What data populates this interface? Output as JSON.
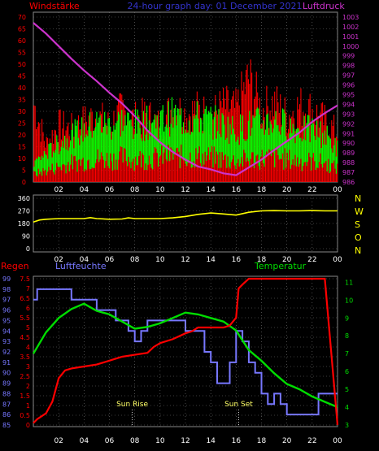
{
  "chart_data": [
    {
      "panel": "wind-pressure",
      "type": "line",
      "title": "24-hour graph day: 01 December 2021",
      "left_label": "Windstärke",
      "right_label": "Luftdruck",
      "x_ticks": [
        "02",
        "04",
        "06",
        "08",
        "10",
        "12",
        "14",
        "16",
        "18",
        "20",
        "22",
        "00"
      ],
      "y_left_ticks": [
        "0",
        "5",
        "10",
        "15",
        "20",
        "25",
        "30",
        "35",
        "40",
        "45",
        "50",
        "55",
        "60",
        "65",
        "70"
      ],
      "y_left_range": [
        0,
        70
      ],
      "y_right_ticks": [
        "986",
        "987",
        "988",
        "989",
        "990",
        "991",
        "992",
        "993",
        "994",
        "995",
        "996",
        "997",
        "998",
        "999",
        "1000",
        "1001",
        "1002",
        "1003"
      ],
      "y_right_range": [
        986,
        1003.5
      ],
      "grid": true,
      "colors": {
        "gust": "#ff0000",
        "wind": "#00ff00",
        "pressure": "#cc33cc",
        "axis_left": "#ff0000",
        "axis_right": "#cc33cc",
        "title": "#3333cc"
      },
      "series": [
        {
          "key": "gust",
          "x": [
            0,
            1,
            2,
            3,
            4,
            5,
            6,
            7,
            8,
            9,
            10,
            11,
            12,
            13,
            14,
            15,
            16,
            17,
            18,
            19,
            20,
            21,
            22,
            23,
            24
          ],
          "values": [
            42,
            20,
            30,
            28,
            32,
            35,
            30,
            38,
            33,
            35,
            30,
            40,
            36,
            38,
            35,
            40,
            38,
            55,
            38,
            42,
            35,
            40,
            38,
            32,
            26
          ]
        },
        {
          "key": "wind",
          "x": [
            0,
            1,
            2,
            3,
            4,
            5,
            6,
            7,
            8,
            9,
            10,
            11,
            12,
            13,
            14,
            15,
            16,
            17,
            18,
            19,
            20,
            21,
            22,
            23,
            24
          ],
          "values": [
            8,
            12,
            16,
            20,
            22,
            25,
            24,
            26,
            24,
            25,
            26,
            28,
            26,
            27,
            26,
            24,
            22,
            24,
            25,
            26,
            24,
            22,
            22,
            20,
            14
          ]
        },
        {
          "key": "pressure",
          "x": [
            0,
            1,
            2,
            3,
            4,
            5,
            6,
            7,
            8,
            9,
            10,
            11,
            12,
            13,
            14,
            15,
            16,
            17,
            18,
            19,
            20,
            21,
            22,
            23,
            24
          ],
          "values": [
            1002.4,
            1001.3,
            1000.0,
            998.7,
            997.5,
            996.4,
            995.2,
            994.1,
            992.8,
            991.3,
            990.1,
            989.1,
            988.3,
            987.6,
            987.3,
            986.9,
            986.7,
            987.5,
            988.3,
            989.3,
            990.2,
            991.1,
            992.2,
            993.1,
            993.9
          ]
        }
      ]
    },
    {
      "panel": "wind-direction",
      "type": "line",
      "y_ticks": [
        "360",
        "270",
        "180",
        "90",
        "0"
      ],
      "y_range": [
        0,
        360
      ],
      "direction_labels": [
        "N",
        "W",
        "S",
        "O",
        "N"
      ],
      "x_ticks": [
        "02",
        "04",
        "06",
        "08",
        "10",
        "12",
        "14",
        "16",
        "18",
        "20",
        "22",
        "00"
      ],
      "grid": true,
      "colors": {
        "direction": "#ffff00",
        "labels": "#ffff00",
        "axis": "#ffff00"
      },
      "series": [
        {
          "key": "direction",
          "x": [
            0,
            0.5,
            1,
            2,
            3,
            4,
            4.5,
            5,
            6,
            7,
            7.5,
            8,
            9,
            10,
            11,
            12,
            13,
            14,
            15,
            16,
            17,
            18,
            19,
            20,
            21,
            22,
            23,
            24
          ],
          "values": [
            190,
            205,
            210,
            215,
            215,
            215,
            222,
            215,
            210,
            212,
            220,
            215,
            215,
            215,
            220,
            230,
            245,
            255,
            248,
            240,
            260,
            270,
            272,
            270,
            270,
            272,
            270,
            270
          ]
        }
      ]
    },
    {
      "panel": "rain-humidity-temperature",
      "type": "line",
      "left_label": "Regen",
      "mid_label": "Luftfeuchte",
      "right_label": "Temperatur",
      "annotations": [
        {
          "text": "Sun Rise",
          "x": 7.8
        },
        {
          "text": "Sun Set",
          "x": 16.2
        }
      ],
      "x_ticks": [
        "02",
        "04",
        "06",
        "08",
        "10",
        "12",
        "14",
        "16",
        "18",
        "20",
        "22",
        "00"
      ],
      "y_rain_ticks": [
        "0",
        "0.5",
        "1",
        "1.5",
        "2",
        "2.5",
        "3",
        "3.5",
        "4",
        "4.5",
        "5",
        "5.5",
        "6",
        "6.5",
        "7",
        "7.5"
      ],
      "y_rain_range": [
        0,
        7.5
      ],
      "y_humidity_ticks": [
        "85",
        "86",
        "87",
        "88",
        "89",
        "90",
        "91",
        "92",
        "93",
        "94",
        "95",
        "96",
        "97",
        "98",
        "99"
      ],
      "y_humidity_range": [
        85,
        99
      ],
      "y_temp_ticks": [
        "3",
        "4",
        "5",
        "6",
        "7",
        "8",
        "9",
        "10",
        "11"
      ],
      "y_temp_range": [
        3,
        11
      ],
      "grid": true,
      "colors": {
        "rain": "#ff0000",
        "humidity": "#7777ff",
        "temperature": "#00dd00",
        "rain_axis": "#ff0000",
        "humidity_axis": "#7777ff",
        "temp_axis": "#00dd00"
      },
      "series": [
        {
          "key": "rain",
          "x": [
            0,
            0.3,
            1,
            1.5,
            2,
            2.5,
            3,
            4,
            5,
            6,
            7,
            8,
            9,
            9.5,
            10,
            11,
            12,
            12.5,
            13,
            14,
            15,
            15.5,
            16,
            16.2,
            16.5,
            17,
            18,
            19,
            20,
            21,
            22,
            23,
            24
          ],
          "values": [
            0.1,
            0.3,
            0.6,
            1.2,
            2.4,
            2.8,
            2.9,
            3.0,
            3.1,
            3.3,
            3.5,
            3.6,
            3.7,
            4.0,
            4.2,
            4.4,
            4.7,
            4.8,
            5.0,
            5.0,
            5.0,
            5.1,
            5.5,
            7.0,
            7.2,
            7.5,
            7.5,
            7.5,
            7.5,
            7.5,
            7.5,
            7.5,
            0.0
          ]
        },
        {
          "key": "humidity",
          "x": [
            0,
            0.3,
            0.6,
            2,
            3,
            4,
            5,
            6,
            6.5,
            7,
            7.5,
            8,
            8.5,
            9,
            9.5,
            10,
            11,
            12,
            13,
            13.5,
            14,
            14.5,
            15,
            15.5,
            16,
            16.5,
            17,
            17.5,
            18,
            18.5,
            19,
            19.5,
            20,
            21,
            22,
            22.5,
            23,
            23.5,
            24
          ],
          "values": [
            97,
            98,
            98,
            98,
            97,
            97,
            96,
            96,
            95,
            95,
            94,
            93,
            94,
            95,
            95,
            95,
            95,
            94,
            94,
            92,
            91,
            89,
            89,
            91,
            94,
            93,
            91,
            90,
            88,
            87,
            88,
            87,
            86,
            86,
            86,
            88,
            88,
            88,
            88
          ]
        },
        {
          "key": "temperature",
          "x": [
            0,
            1,
            2,
            3,
            4,
            5,
            6,
            7,
            8,
            9,
            10,
            11,
            12,
            13,
            14,
            15,
            16,
            17,
            18,
            19,
            20,
            21,
            22,
            23,
            24
          ],
          "values": [
            7.0,
            8.2,
            9.0,
            9.5,
            9.8,
            9.4,
            9.2,
            8.8,
            8.4,
            8.5,
            8.7,
            9.0,
            9.3,
            9.2,
            9.0,
            8.8,
            8.3,
            7.2,
            6.6,
            5.9,
            5.3,
            5.0,
            4.6,
            4.3,
            4.0
          ]
        }
      ]
    }
  ]
}
